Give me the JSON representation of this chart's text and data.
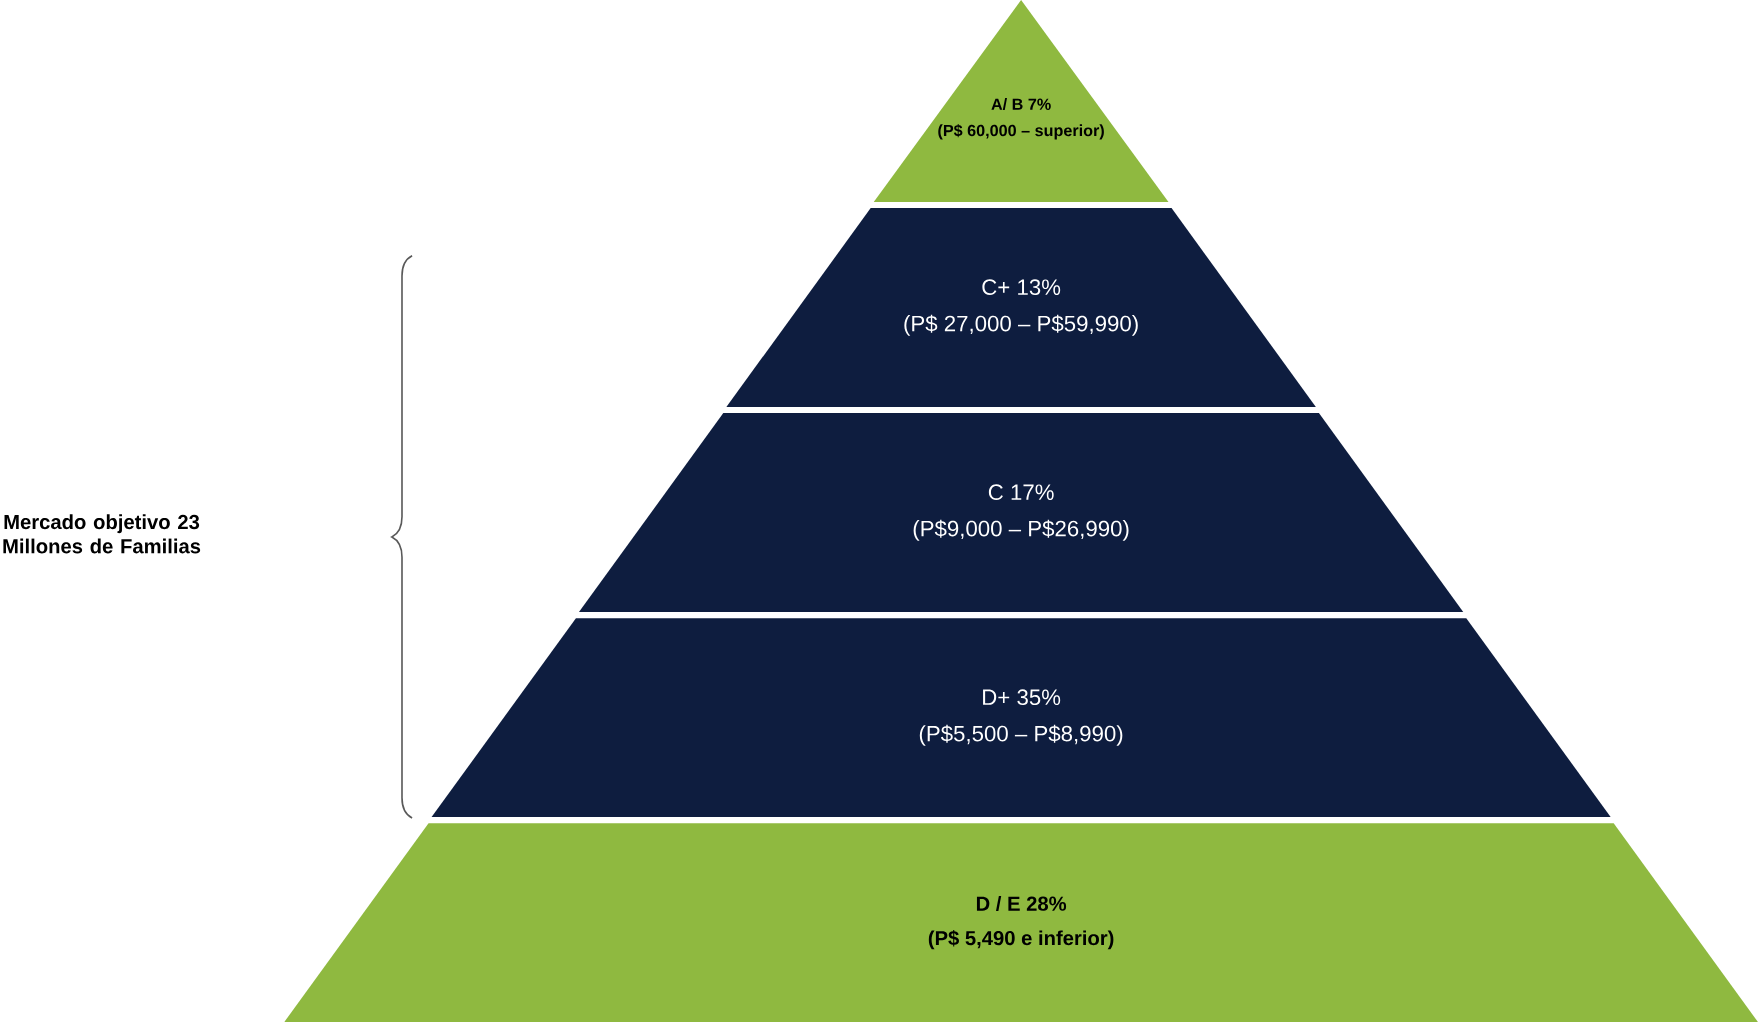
{
  "chart_data": {
    "type": "other",
    "categories": [
      "A/ B",
      "C+",
      "C",
      "D+",
      "D / E"
    ],
    "values": [
      7,
      13,
      17,
      35,
      28
    ],
    "value_labels": [
      "7%",
      "13%",
      "17%",
      "35%",
      "28%"
    ],
    "colors": [
      "#8fb940",
      "#0e1d3f",
      "#0e1d3f",
      "#0e1d3f",
      "#8fb940"
    ],
    "annotations": [
      "(P$ 60,000 – superior)",
      "(P$ 27,000 – P$59,990)",
      "(P$9,000 – P$26,990)",
      "(P$5,500 – P$8,990)",
      "(P$ 5,490 e inferior)",
      "Mercado objetivo 23 Millones de Familias"
    ]
  }
}
